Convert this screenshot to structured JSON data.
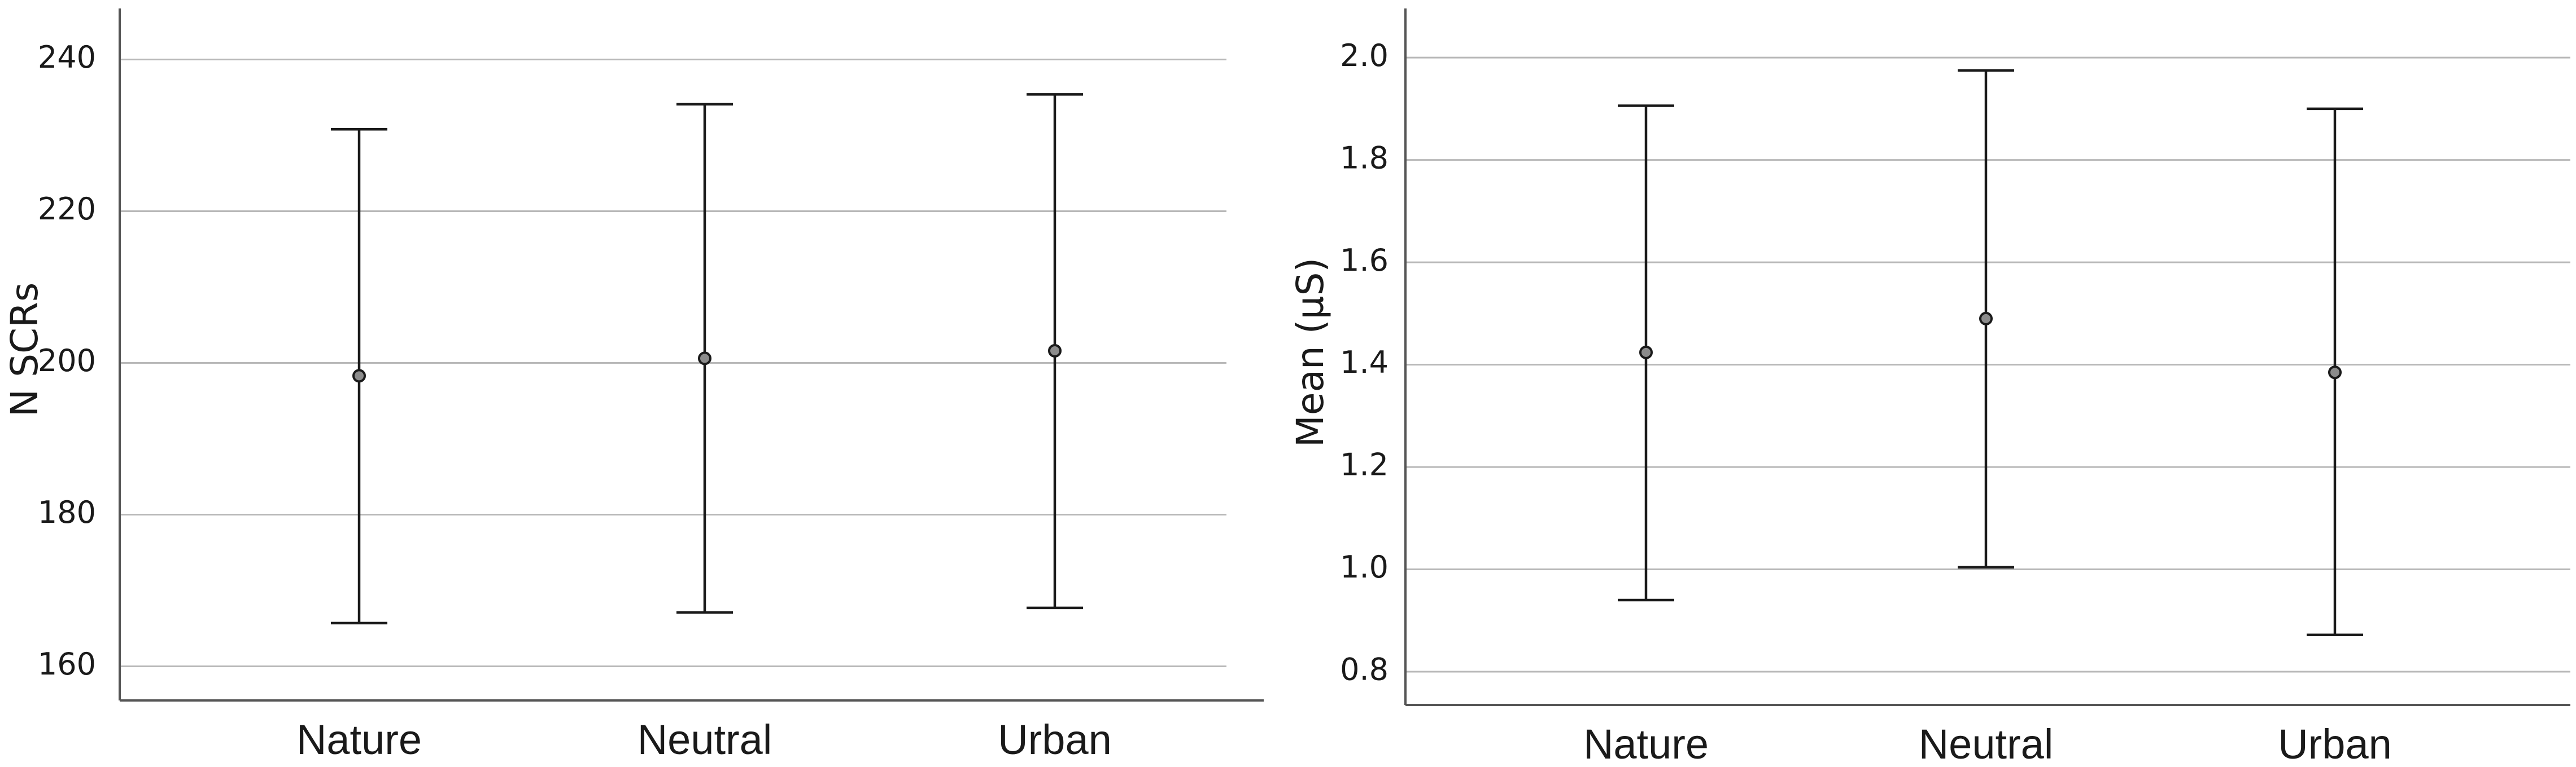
{
  "chart_data": [
    {
      "type": "scatter",
      "title": "",
      "xlabel": "",
      "ylabel": "N SCRs",
      "categories": [
        "Nature",
        "Neutral",
        "Urban"
      ],
      "means": [
        198.3,
        200.6,
        201.6
      ],
      "lower": [
        165.7,
        167.1,
        167.7
      ],
      "upper": [
        230.8,
        234.1,
        235.4
      ],
      "yticks": [
        160,
        180,
        200,
        220,
        240
      ],
      "ytick_labels": [
        "160",
        "180",
        "200",
        "220",
        "240"
      ],
      "ylim": [
        155.5,
        244.5
      ],
      "grid": true
    },
    {
      "type": "scatter",
      "title": "",
      "xlabel": "",
      "ylabel": "Mean (µS)",
      "categories": [
        "Nature",
        "Neutral",
        "Urban"
      ],
      "means": [
        1.424,
        1.49,
        1.385
      ],
      "lower": [
        0.94,
        1.004,
        0.872
      ],
      "upper": [
        1.906,
        1.975,
        1.9
      ],
      "yticks": [
        0.8,
        1.0,
        1.2,
        1.4,
        1.6,
        1.8,
        2.0
      ],
      "ytick_labels": [
        "0.8",
        "1.0",
        "1.2",
        "1.4",
        "1.6",
        "1.8",
        "2.0"
      ],
      "ylim": [
        0.735,
        2.063
      ],
      "grid": true
    }
  ]
}
